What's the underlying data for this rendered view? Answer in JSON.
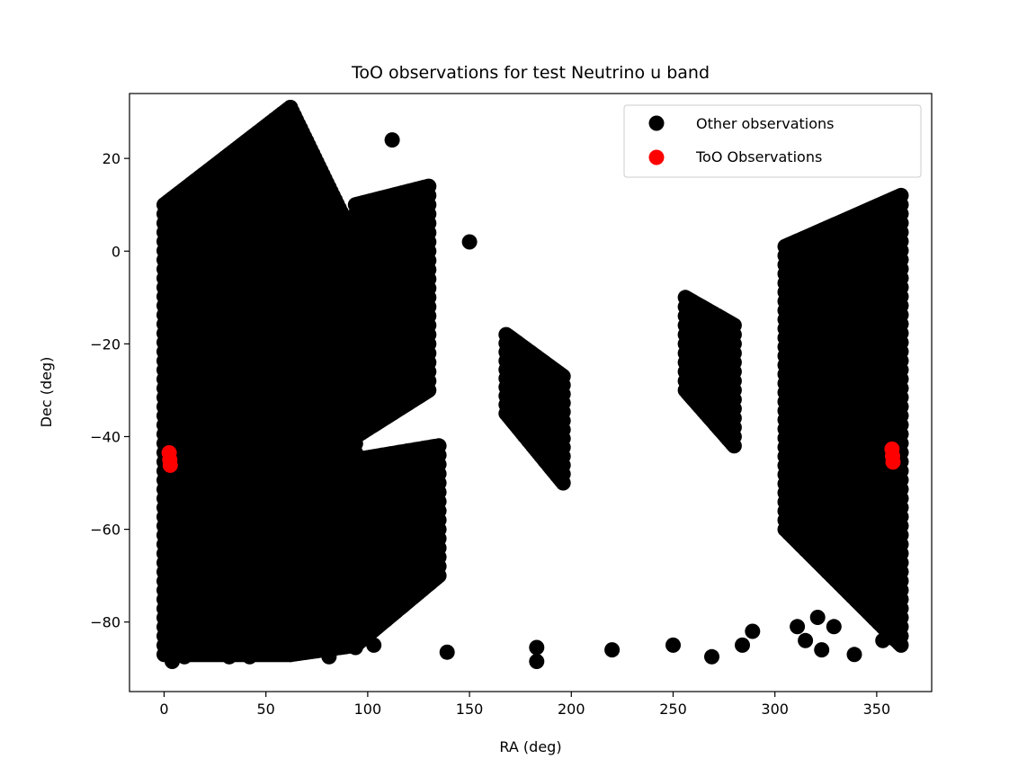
{
  "chart_data": {
    "type": "scatter",
    "title": "ToO observations for test Neutrino u band",
    "xlabel": "RA (deg)",
    "ylabel": "Dec (deg)",
    "xlim": [
      -17,
      377
    ],
    "ylim": [
      -95,
      34
    ],
    "xticks": [
      0,
      50,
      100,
      150,
      200,
      250,
      300,
      350
    ],
    "yticks": [
      20,
      0,
      -20,
      -40,
      -60,
      -80
    ],
    "grid": false,
    "legend_position": "top-right",
    "marker_size_pt": 7.5,
    "series": [
      {
        "name": "Other observations",
        "color": "#000000",
        "regions": [
          {
            "kind": "column",
            "ra": [
              0,
              62
            ],
            "dec_min": [
              -87,
              -87
            ],
            "dec_max": [
              10,
              31
            ]
          },
          {
            "kind": "column",
            "ra": [
              62,
              94
            ],
            "dec_min": [
              -87,
              -85
            ],
            "dec_max": [
              31,
              2
            ]
          },
          {
            "kind": "column",
            "ra": [
              94,
              135
            ],
            "dec_min": [
              -85,
              -70
            ],
            "dec_max": [
              -45,
              -42
            ]
          },
          {
            "kind": "column",
            "ra": [
              94,
              130
            ],
            "dec_min": [
              -40,
              -30
            ],
            "dec_max": [
              10,
              14
            ]
          },
          {
            "kind": "column",
            "ra": [
              168,
              196
            ],
            "dec_min": [
              -35,
              -50
            ],
            "dec_max": [
              -18,
              -27
            ]
          },
          {
            "kind": "column",
            "ra": [
              256,
              280
            ],
            "dec_min": [
              -30,
              -42
            ],
            "dec_max": [
              -10,
              -16
            ]
          },
          {
            "kind": "column",
            "ra": [
              305,
              362
            ],
            "dec_min": [
              -60,
              -85
            ],
            "dec_max": [
              1,
              12
            ]
          }
        ],
        "points": [
          {
            "ra": 112,
            "dec": 24
          },
          {
            "ra": 150,
            "dec": 2
          },
          {
            "ra": 139,
            "dec": -86.5
          },
          {
            "ra": 183,
            "dec": -85.5
          },
          {
            "ra": 183,
            "dec": -88.5
          },
          {
            "ra": 220,
            "dec": -86
          },
          {
            "ra": 250,
            "dec": -85
          },
          {
            "ra": 269,
            "dec": -87.5
          },
          {
            "ra": 284,
            "dec": -85
          },
          {
            "ra": 289,
            "dec": -82
          },
          {
            "ra": 311,
            "dec": -81
          },
          {
            "ra": 315,
            "dec": -84
          },
          {
            "ra": 321,
            "dec": -79
          },
          {
            "ra": 323,
            "dec": -86
          },
          {
            "ra": 329,
            "dec": -81
          },
          {
            "ra": 339,
            "dec": -87
          },
          {
            "ra": 353,
            "dec": -84
          },
          {
            "ra": 359,
            "dec": -80.5
          },
          {
            "ra": 358,
            "dec": -83.5
          },
          {
            "ra": 81,
            "dec": -87.5
          },
          {
            "ra": 103,
            "dec": -85
          },
          {
            "ra": 94,
            "dec": -85.5
          },
          {
            "ra": 97,
            "dec": -79.5
          },
          {
            "ra": 133,
            "dec": -69.5
          },
          {
            "ra": 32,
            "dec": -87.5
          },
          {
            "ra": 42,
            "dec": -87.5
          },
          {
            "ra": 4,
            "dec": -88.5
          },
          {
            "ra": 10,
            "dec": -87.5
          },
          {
            "ra": 58,
            "dec": -85.5
          },
          {
            "ra": 70,
            "dec": -84
          },
          {
            "ra": 76,
            "dec": -82
          },
          {
            "ra": 86,
            "dec": -82
          },
          {
            "ra": 104,
            "dec": -73.5
          },
          {
            "ra": 96,
            "dec": -76
          }
        ]
      },
      {
        "name": "ToO Observations",
        "color": "#ff0000",
        "points": [
          {
            "ra": 2.5,
            "dec": -43.5
          },
          {
            "ra": 2.8,
            "dec": -45.0
          },
          {
            "ra": 3.0,
            "dec": -46.2
          },
          {
            "ra": 357.5,
            "dec": -42.7
          },
          {
            "ra": 357.8,
            "dec": -44.2
          },
          {
            "ra": 358.0,
            "dec": -45.5
          }
        ]
      }
    ]
  }
}
